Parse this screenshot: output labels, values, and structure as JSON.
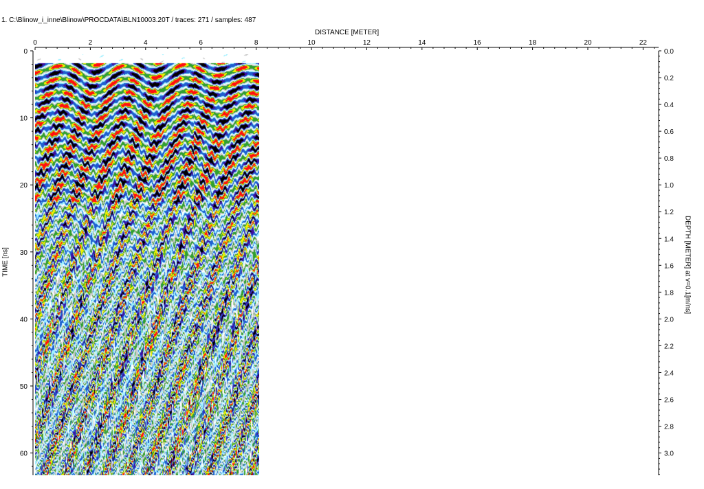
{
  "header": {
    "title": "1. C:\\Blinow_i_inne\\Blinow\\PROCDATA\\BLN10003.20T / traces: 271 / samples: 487"
  },
  "axes": {
    "distance_label": "DISTANCE [METER]",
    "distance_ticks": [
      "0",
      "2",
      "4",
      "6",
      "8",
      "10",
      "12",
      "14",
      "16",
      "18",
      "20",
      "22"
    ],
    "time_label": "TIME [ns]",
    "time_ticks": [
      "0",
      "10",
      "20",
      "30",
      "40",
      "50",
      "60"
    ],
    "depth_label": "DEPTH [METER] at v=0.1[m/ns]",
    "depth_ticks": [
      "0.0",
      "0.2",
      "0.4",
      "0.6",
      "0.8",
      "1.0",
      "1.2",
      "1.4",
      "1.6",
      "1.8",
      "2.0",
      "2.2",
      "2.4",
      "2.6",
      "2.8",
      "3.0"
    ]
  },
  "radargram": {
    "traces": 271,
    "samples": 487,
    "length_m": 8.1,
    "palette": [
      "#ffffff",
      "#c8c8c8",
      "#a0f0ff",
      "#2060d0",
      "#4010a0",
      "#30a030",
      "#f0f000",
      "#ff1010",
      "#000000"
    ]
  }
}
